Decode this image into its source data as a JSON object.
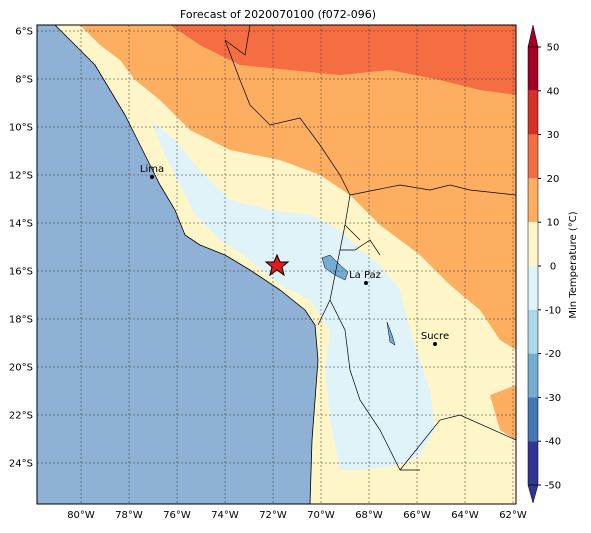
{
  "map": {
    "title": "Forecast of 2020070100 (f072-096)",
    "lon_labels": [
      "80°W",
      "78°W",
      "76°W",
      "74°W",
      "72°W",
      "70°W",
      "68°W",
      "66°W",
      "64°W",
      "62°W"
    ],
    "lat_labels": [
      "6°S",
      "8°S",
      "10°S",
      "12°S",
      "14°S",
      "16°S",
      "18°S",
      "20°S",
      "22°S",
      "24°S"
    ],
    "cities": [
      "Lima",
      "La Paz",
      "Sucre"
    ]
  },
  "colorbar": {
    "label": "Min Temperature (°C)",
    "ticks": [
      50,
      40,
      30,
      20,
      10,
      0,
      -10,
      -20,
      -30,
      -40,
      -50
    ],
    "colors": [
      "#a50026",
      "#d73027",
      "#f46d43",
      "#fdae61",
      "#fef6c8",
      "#e0f3f8",
      "#abd9e9",
      "#74add1",
      "#4575b4",
      "#313695"
    ],
    "ylim": [
      -50,
      50
    ]
  }
}
